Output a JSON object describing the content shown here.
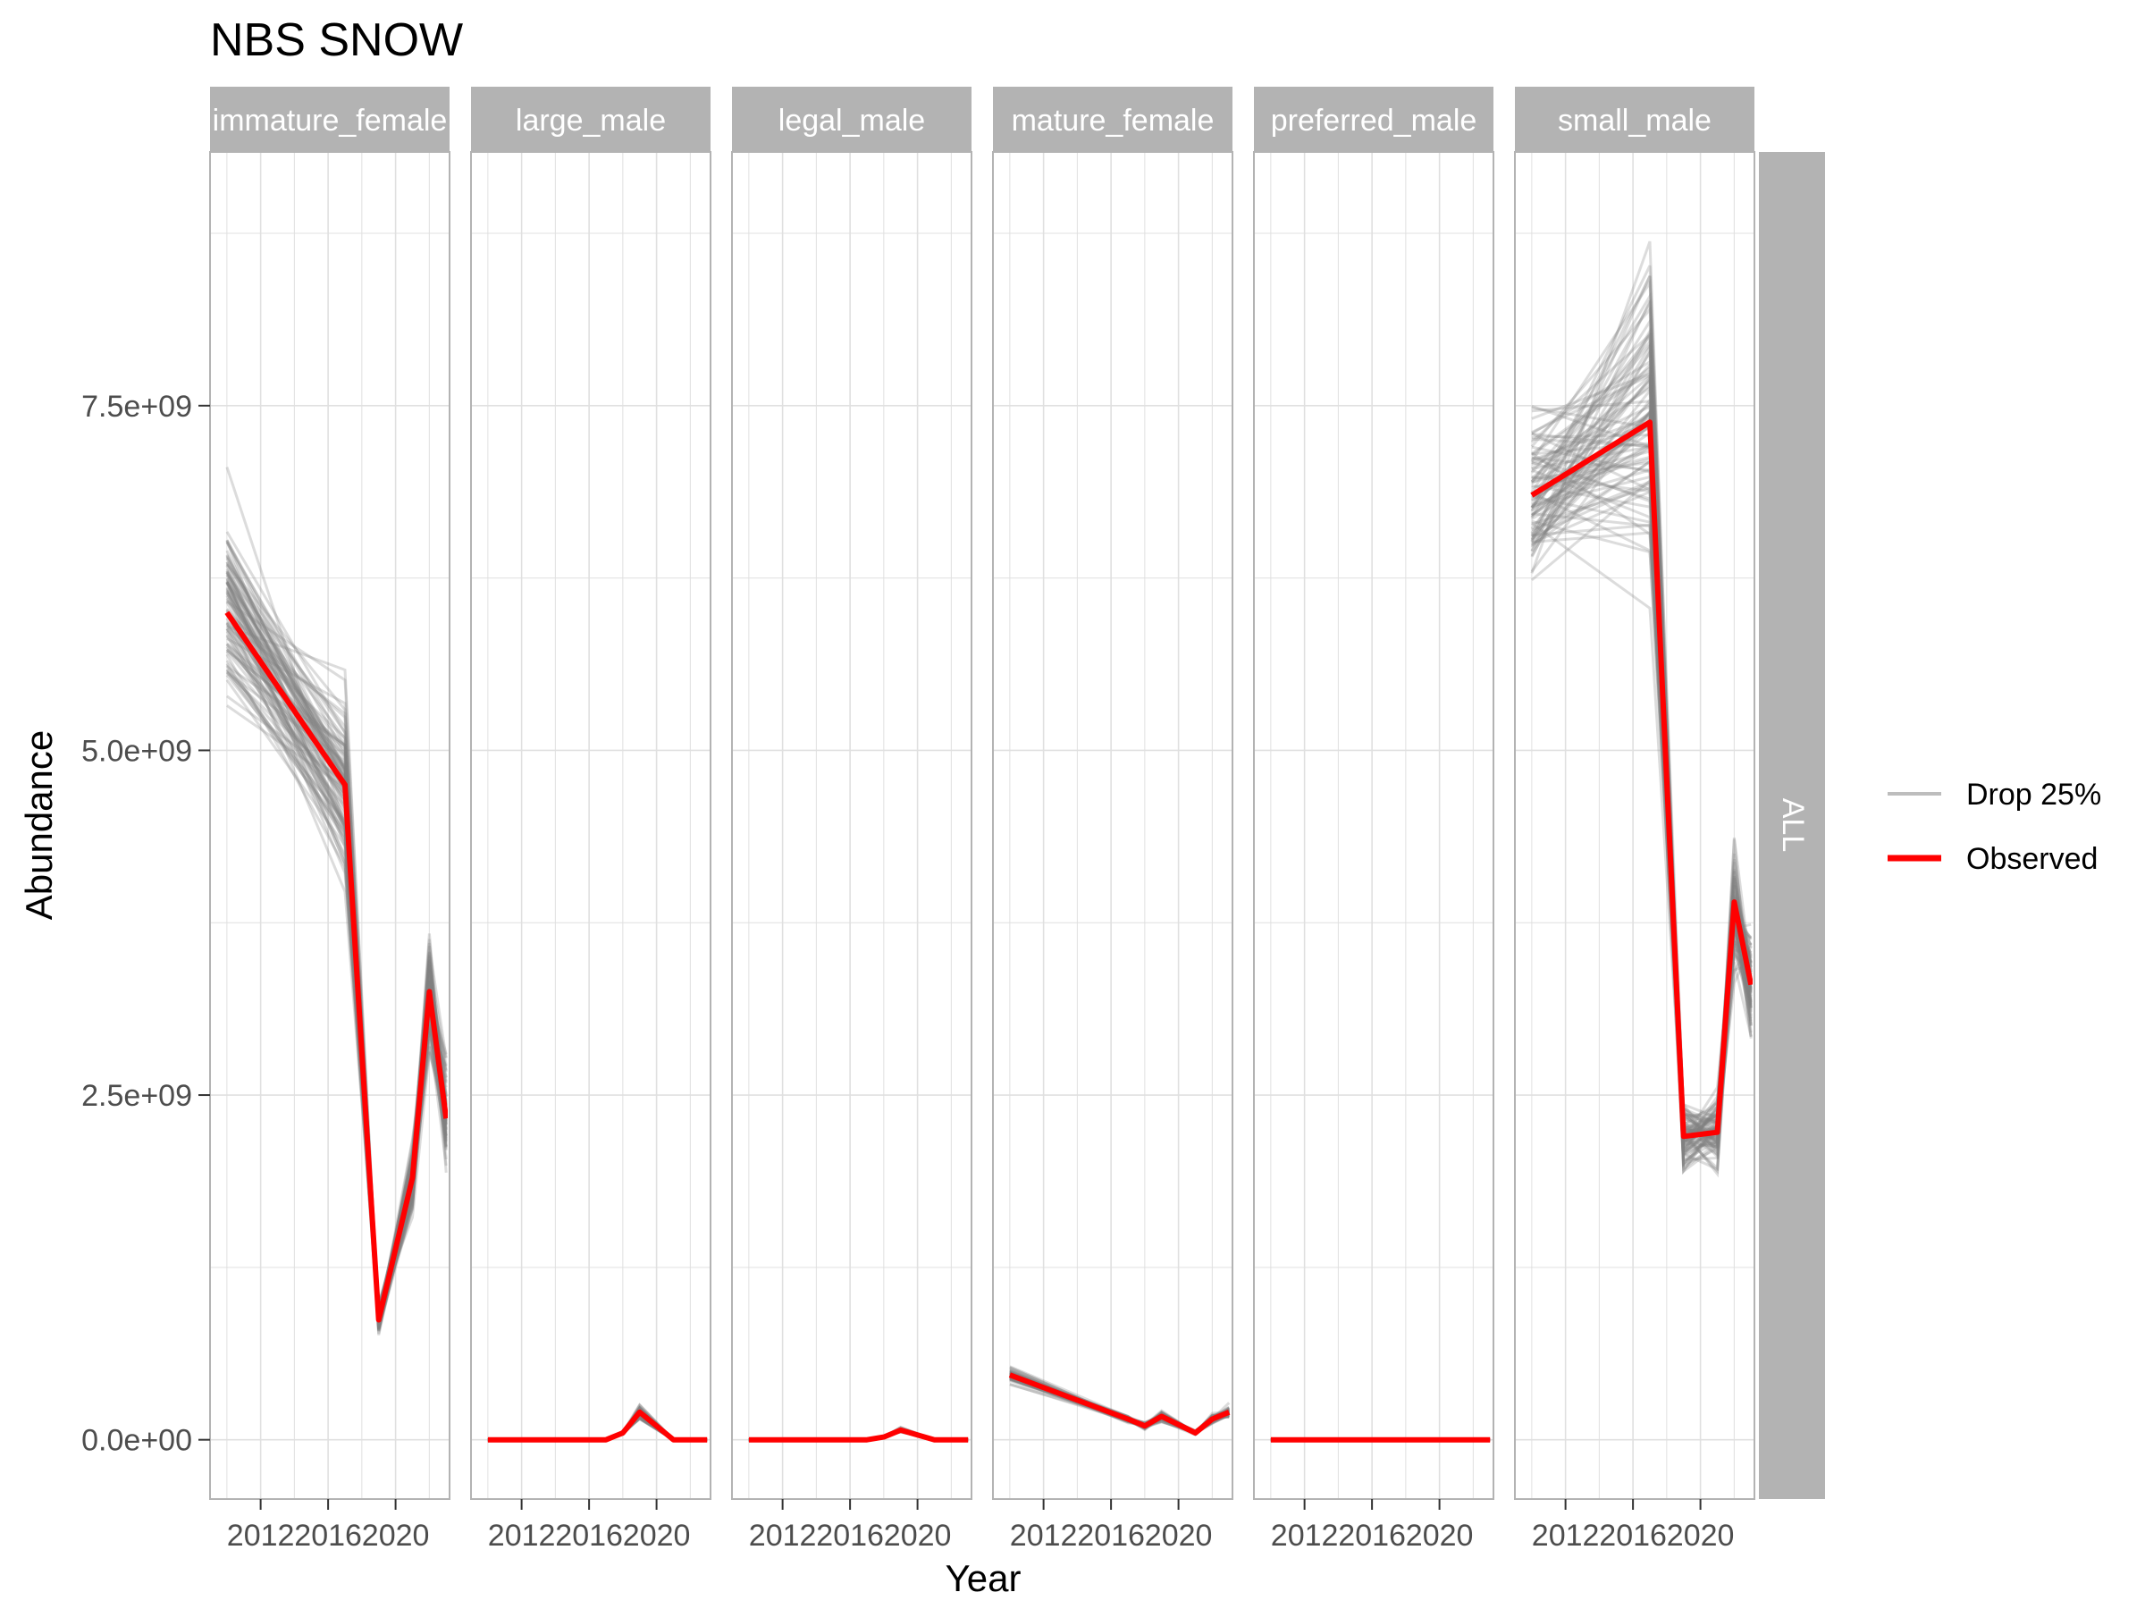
{
  "chart_data": {
    "type": "line",
    "title": "NBS SNOW",
    "xlabel": "Year",
    "ylabel": "Abundance",
    "x_ticks": [
      "2012",
      "2016",
      "2020"
    ],
    "x_tick_values": [
      2012,
      2016,
      2020
    ],
    "xlim": [
      2009.0,
      2023.2
    ],
    "y_ticks": [
      "0.0e+00",
      "2.5e+09",
      "5.0e+09",
      "7.5e+09"
    ],
    "y_tick_values": [
      0,
      2500000000,
      5000000000,
      7500000000
    ],
    "ylim": [
      -430000000,
      9340000000
    ],
    "grid": true,
    "row_strip": "ALL",
    "legend": {
      "placement": "right",
      "entries": [
        {
          "label": "Drop 25%",
          "color": "#bdbdbd"
        },
        {
          "label": "Observed",
          "color": "#ff0000"
        }
      ]
    },
    "colors": {
      "observed": "#ff0000",
      "replicates": "#808080",
      "strip": "#b3b3b3",
      "grid": "#e0e0e0",
      "panel_border": "#b3b3b3"
    },
    "panels": [
      {
        "label": "immature_female",
        "years": [
          2010,
          2017,
          2019,
          2021,
          2022,
          2023
        ],
        "observed": [
          6000000000,
          4750000000,
          870000000,
          1900000000,
          3250000000,
          2330000000
        ],
        "drop_25_spread": [
          0.18,
          0.18,
          0.18,
          0.18,
          0.18,
          0.22
        ]
      },
      {
        "label": "large_male",
        "years": [
          2010,
          2017,
          2018,
          2019,
          2021,
          2023
        ],
        "observed": [
          0,
          0,
          50000000,
          200000000,
          0,
          0
        ],
        "drop_25_spread": [
          0.3,
          0.3,
          0.3,
          0.3,
          0.3,
          0.3
        ]
      },
      {
        "label": "legal_male",
        "years": [
          2010,
          2017,
          2018,
          2019,
          2021,
          2023
        ],
        "observed": [
          0,
          0,
          20000000,
          70000000,
          0,
          0
        ],
        "drop_25_spread": [
          0.3,
          0.3,
          0.3,
          0.3,
          0.3,
          0.3
        ]
      },
      {
        "label": "mature_female",
        "years": [
          2010,
          2017,
          2018,
          2019,
          2021,
          2022,
          2023
        ],
        "observed": [
          470000000,
          150000000,
          100000000,
          170000000,
          50000000,
          150000000,
          200000000
        ],
        "drop_25_spread": [
          0.15,
          0.2,
          0.3,
          0.3,
          0.4,
          0.3,
          0.3
        ]
      },
      {
        "label": "preferred_male",
        "years": [
          2010,
          2017,
          2018,
          2019,
          2021,
          2023
        ],
        "observed": [
          0,
          0,
          0,
          0,
          0,
          0
        ],
        "drop_25_spread": [
          0,
          0,
          0,
          0,
          0,
          0
        ]
      },
      {
        "label": "small_male",
        "years": [
          2010,
          2017,
          2019,
          2021,
          2022,
          2023
        ],
        "observed": [
          6850000000,
          7380000000,
          2200000000,
          2230000000,
          3900000000,
          3300000000
        ],
        "drop_25_spread": [
          0.12,
          0.2,
          0.15,
          0.15,
          0.15,
          0.18
        ]
      }
    ]
  }
}
